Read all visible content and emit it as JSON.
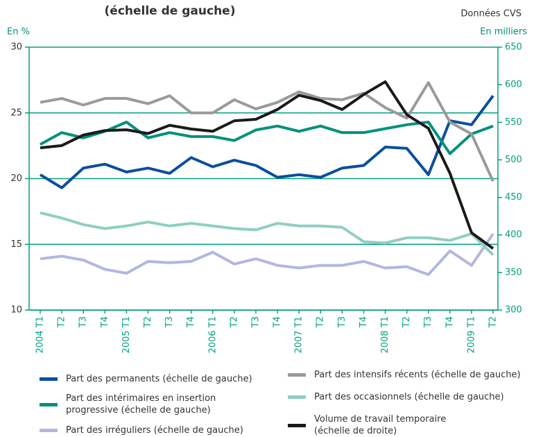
{
  "chart_data": {
    "type": "line",
    "title": "(échelle de gauche)",
    "subtitle": "Données CVS",
    "y_label": "En %",
    "y2_label": "En milliers",
    "categories": [
      "2004 T1",
      "T2",
      "T3",
      "T4",
      "2005 T1",
      "T2",
      "T3",
      "T4",
      "2006 T1",
      "T2",
      "T3",
      "T4",
      "2007 T1",
      "T2",
      "T3",
      "T4",
      "2008 T1",
      "T2",
      "T3",
      "T4",
      "2009 T1",
      "T2"
    ],
    "ylim": [
      10,
      30
    ],
    "yticks": [
      10,
      15,
      20,
      25,
      30
    ],
    "y2lim": [
      300,
      650
    ],
    "y2ticks": [
      300,
      350,
      400,
      450,
      500,
      550,
      600,
      650
    ],
    "grid": true,
    "series": [
      {
        "name": "Part des permanents (échelle de gauche)",
        "color": "#0b4f9e",
        "values": [
          20.3,
          19.3,
          20.8,
          21.1,
          20.5,
          20.8,
          20.4,
          21.6,
          20.9,
          21.4,
          21.0,
          20.1,
          20.3,
          20.1,
          20.8,
          21.0,
          22.4,
          22.3,
          20.3,
          24.4,
          24.1,
          26.3
        ]
      },
      {
        "name": "Part des intérimaires en insertion progressive (échelle de gauche)",
        "color": "#00917a",
        "values": [
          22.6,
          23.5,
          23.1,
          23.6,
          24.3,
          23.1,
          23.5,
          23.2,
          23.2,
          22.9,
          23.7,
          24.0,
          23.6,
          24.0,
          23.5,
          23.5,
          23.8,
          24.1,
          24.3,
          21.9,
          23.4,
          24.0
        ]
      },
      {
        "name": "Part des irréguliers (échelle de gauche)",
        "color": "#b2b7e0",
        "values": [
          13.9,
          14.1,
          13.8,
          13.1,
          12.8,
          13.7,
          13.6,
          13.7,
          14.4,
          13.5,
          13.9,
          13.4,
          13.2,
          13.4,
          13.4,
          13.7,
          13.2,
          13.3,
          12.7,
          14.5,
          13.4,
          15.8
        ]
      },
      {
        "name": "Part des intensifs récents (échelle de gauche)",
        "color": "#9a9a9a",
        "values": [
          25.8,
          26.1,
          25.6,
          26.1,
          26.1,
          25.7,
          26.3,
          25.0,
          25.0,
          26.0,
          25.3,
          25.8,
          26.6,
          26.1,
          26.0,
          26.5,
          25.4,
          24.6,
          27.3,
          24.3,
          23.4,
          19.8
        ]
      },
      {
        "name": "Part des occasionnels (échelle de gauche)",
        "color": "#8fcfc1",
        "values": [
          17.4,
          17.0,
          16.5,
          16.2,
          16.4,
          16.7,
          16.4,
          16.6,
          16.4,
          16.2,
          16.1,
          16.6,
          16.4,
          16.4,
          16.3,
          15.2,
          15.1,
          15.5,
          15.5,
          15.3,
          15.8,
          14.2
        ]
      },
      {
        "name": "Volume de travail temporaire (échelle de droite)",
        "color": "#1a1a1a",
        "axis": "y2",
        "values": [
          516,
          519,
          533,
          539,
          540,
          535,
          546,
          541,
          538,
          552,
          554,
          567,
          586,
          579,
          567,
          587,
          604,
          560,
          542,
          482,
          403,
          382
        ]
      }
    ]
  }
}
